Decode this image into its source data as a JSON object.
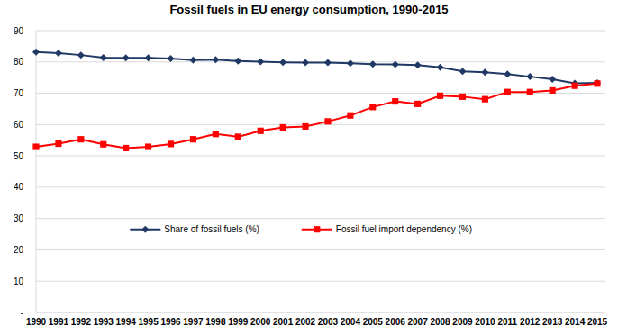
{
  "chart_data": {
    "type": "line",
    "title": "Fossil fuels in EU energy consumption, 1990-2015",
    "categories": [
      "1990",
      "1991",
      "1992",
      "1993",
      "1994",
      "1995",
      "1996",
      "1997",
      "1998",
      "1999",
      "2000",
      "2001",
      "2002",
      "2003",
      "2004",
      "2005",
      "2006",
      "2007",
      "2008",
      "2009",
      "2010",
      "2011",
      "2012",
      "2013",
      "2014",
      "2015"
    ],
    "series": [
      {
        "name": "Share of fossil fuels (%)",
        "color": "#1f3864",
        "marker": "diamond",
        "line_style": "solid",
        "values": [
          83.2,
          82.8,
          82.2,
          81.4,
          81.3,
          81.3,
          81.1,
          80.6,
          80.7,
          80.3,
          80.1,
          79.9,
          79.8,
          79.8,
          79.6,
          79.3,
          79.2,
          79.0,
          78.3,
          77.0,
          76.7,
          76.1,
          75.3,
          74.5,
          73.2,
          73.3
        ]
      },
      {
        "name": "Fossil fuel import dependency (%)",
        "color": "#ff0000",
        "marker": "square",
        "line_style": "solid",
        "values": [
          52.9,
          53.9,
          55.3,
          53.7,
          52.5,
          52.9,
          53.8,
          55.3,
          57.0,
          56.1,
          58.0,
          59.1,
          59.4,
          61.0,
          62.9,
          65.6,
          67.4,
          66.6,
          69.2,
          68.9,
          68.1,
          70.4,
          70.4,
          70.9,
          72.4,
          73.1
        ]
      }
    ],
    "ylim": [
      0,
      90
    ],
    "yticks": [
      {
        "value": 0,
        "label": "-"
      },
      10,
      20,
      30,
      40,
      50,
      60,
      70,
      80,
      90
    ],
    "grid": true,
    "legend": "center"
  }
}
